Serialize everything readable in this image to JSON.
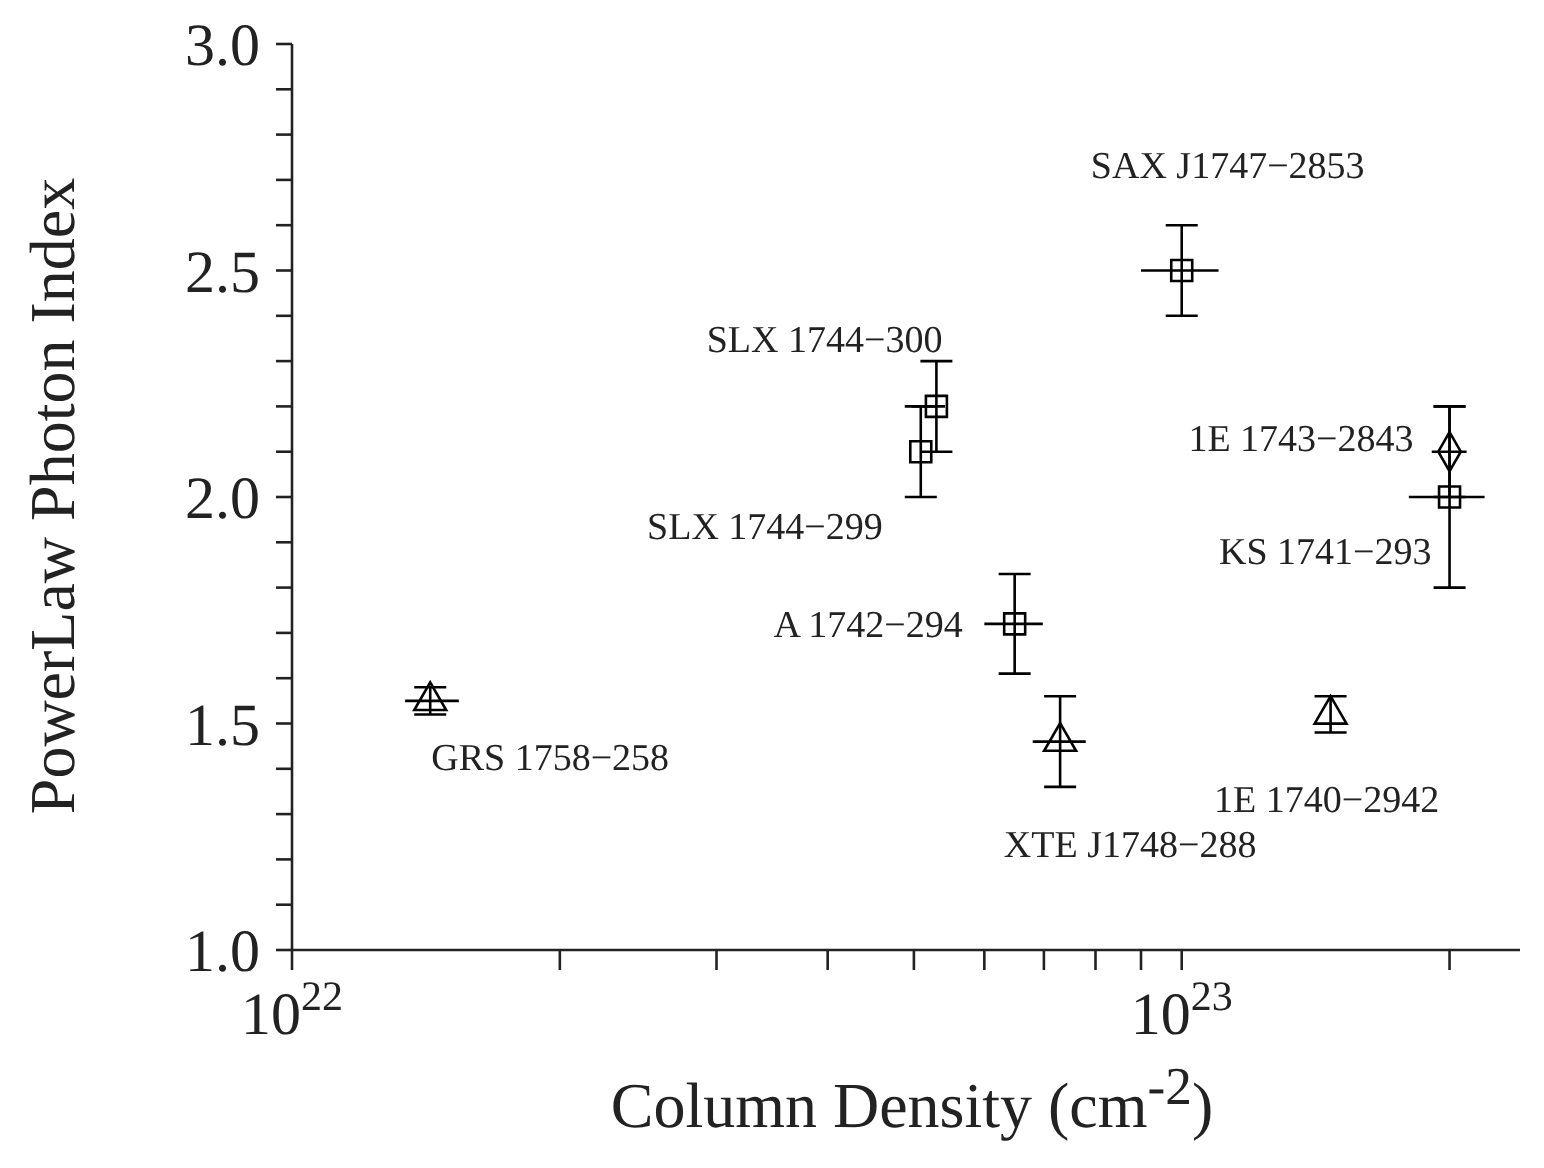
{
  "chart_data": {
    "type": "scatter",
    "xlabel": "Column Density (cm$^{-2}$)",
    "ylabel": "PowerLaw Photon Index",
    "log": "x",
    "xlim": [
      1e+22,
      2.4e+23
    ],
    "xticks": [
      {
        "value": 1e+22,
        "label": "10$^{22}$"
      },
      {
        "value": 2e+22,
        "label": null
      },
      {
        "value": 3e+22,
        "label": null
      },
      {
        "value": 4e+22,
        "label": null
      },
      {
        "value": 5e+22,
        "label": null
      },
      {
        "value": 6e+22,
        "label": null
      },
      {
        "value": 7e+22,
        "label": null
      },
      {
        "value": 8e+22,
        "label": null
      },
      {
        "value": 9e+22,
        "label": null
      },
      {
        "value": 1e+23,
        "label": "10$^{23}$"
      },
      {
        "value": 2e+23,
        "label": null
      }
    ],
    "ylim": [
      1,
      3
    ],
    "yticks": [
      {
        "value": 1,
        "label": "1.0"
      },
      {
        "value": 1.1,
        "label": null
      },
      {
        "value": 1.2,
        "label": null
      },
      {
        "value": 1.3,
        "label": null
      },
      {
        "value": 1.4,
        "label": null
      },
      {
        "value": 1.5,
        "label": "1.5"
      },
      {
        "value": 1.6,
        "label": null
      },
      {
        "value": 1.7,
        "label": null
      },
      {
        "value": 1.8,
        "label": null
      },
      {
        "value": 1.9,
        "label": null
      },
      {
        "value": 2,
        "label": "2.0"
      },
      {
        "value": 2.1,
        "label": null
      },
      {
        "value": 2.2,
        "label": null
      },
      {
        "value": 2.3,
        "label": null
      },
      {
        "value": 2.4,
        "label": null
      },
      {
        "value": 2.5,
        "label": "2.5"
      },
      {
        "value": 2.6,
        "label": null
      },
      {
        "value": 2.7,
        "label": null
      },
      {
        "value": 2.8,
        "label": null
      },
      {
        "value": 2.9,
        "label": null
      },
      {
        "value": 3,
        "label": "3.0"
      }
    ],
    "series": [
      {
        "marker": "triangle",
        "color": "#000000",
        "x": [
          1.43e+22,
          7.3e+22,
          1.47e+23
        ],
        "values": [
          1.55,
          1.46,
          1.52
        ],
        "errors": [
          0.03,
          0.1,
          0.04
        ],
        "xerrors": [
          [
            1.34e+22,
            1.54e+22
          ],
          [
            6.8e+22,
            7.8e+22
          ],
          null
        ]
      },
      {
        "marker": "square",
        "color": "#000000",
        "x": [
          5.3e+22,
          5.09e+22,
          6.49e+22,
          1e+23,
          2e+23
        ],
        "values": [
          2.2,
          2.1,
          1.72,
          2.5,
          2.0
        ],
        "errors": [
          0.1,
          0.1,
          0.11,
          0.1,
          0.2
        ],
        "xerrors": [
          [
            4.97e+22,
            5.42e+22
          ],
          null,
          [
            6e+22,
            6.98e+22
          ],
          [
            9e+22,
            1.1e+23
          ],
          [
            1.8e+23,
            2.19e+23
          ]
        ]
      },
      {
        "marker": "diamond",
        "color": "#000000",
        "x": [
          2e+23
        ],
        "values": [
          2.1
        ],
        "errors": [
          0.1
        ],
        "xerrors": [
          [
            1.91e+23,
            2.09e+23
          ]
        ]
      }
    ],
    "annotations": [
      {
        "text": "GRS 1758−258",
        "x": 1.43e+22,
        "y": 1.55
      },
      {
        "text": "SLX 1744−300",
        "x": 5.3e+22,
        "y": 2.2
      },
      {
        "text": "SLX 1744−299",
        "x": 5.09e+22,
        "y": 2.1
      },
      {
        "text": "A 1742−294",
        "x": 6.49e+22,
        "y": 1.72
      },
      {
        "text": "SAX J1747−2853",
        "x": 1e+23,
        "y": 2.5
      },
      {
        "text": "1E 1743−2843",
        "x": 2e+23,
        "y": 2.1
      },
      {
        "text": "KS 1741−293",
        "x": 2e+23,
        "y": 2.0
      },
      {
        "text": "1E 1740−2942",
        "x": 1.47e+23,
        "y": 1.52
      },
      {
        "text": "XTE J1748−288",
        "x": 7.3e+22,
        "y": 1.46
      }
    ]
  }
}
